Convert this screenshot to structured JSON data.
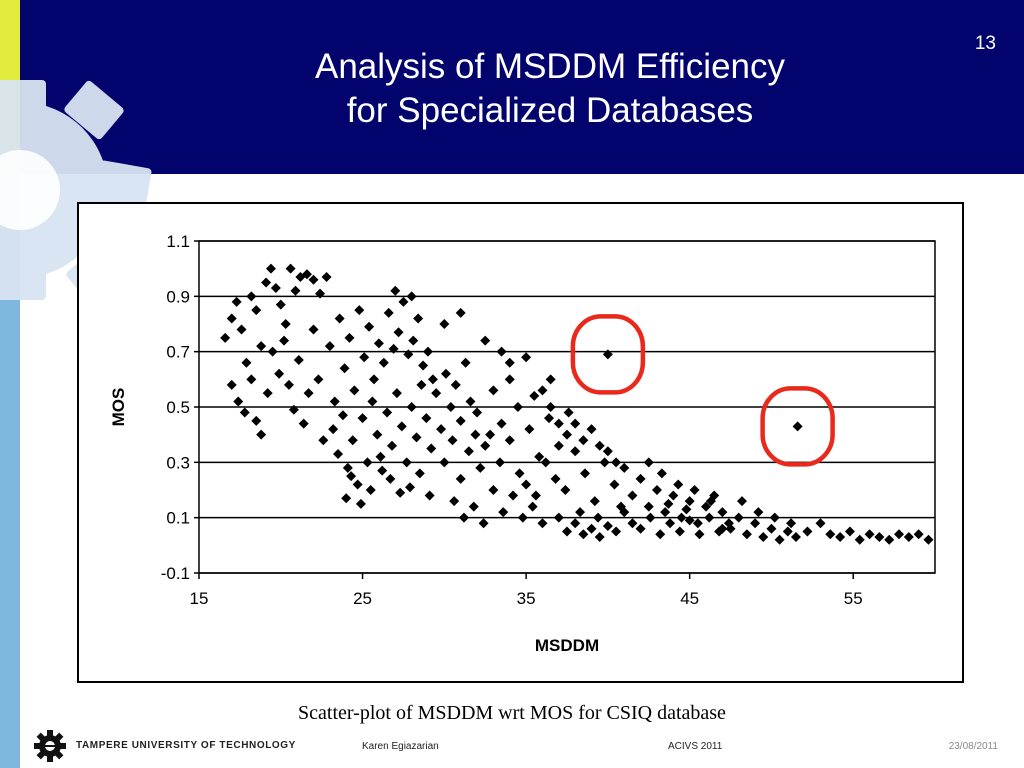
{
  "slide": {
    "title_line1": "Analysis of MSDDM Efficiency",
    "title_line2": "for Specialized Databases",
    "page_number": "13",
    "caption": "Scatter-plot of MSDDM wrt MOS for CSIQ database"
  },
  "footer": {
    "university": "TAMPERE UNIVERSITY OF TECHNOLOGY",
    "author": "Karen Egiazarian",
    "conference": "ACIVS 2011",
    "date": "23/08/2011"
  },
  "colors": {
    "header_bg": "#03036e",
    "highlight_circle": "#e8291c",
    "marker": "#000000"
  },
  "chart_data": {
    "type": "scatter",
    "xlabel": "MSDDM",
    "ylabel": "MOS",
    "xlim": [
      15,
      60
    ],
    "ylim": [
      -0.1,
      1.1
    ],
    "xticks": [
      "15",
      "25",
      "35",
      "45",
      "55"
    ],
    "yticks": [
      "1.1",
      "0.9",
      "0.7",
      "0.5",
      "0.3",
      "0.1",
      "-0.1"
    ],
    "grid": "horizontal",
    "marker": "diamond",
    "highlighted_points": [
      {
        "x": 40.0,
        "y": 0.69
      },
      {
        "x": 51.6,
        "y": 0.43
      }
    ],
    "points": [
      [
        16.6,
        0.75
      ],
      [
        17.0,
        0.82
      ],
      [
        17.3,
        0.88
      ],
      [
        17.6,
        0.78
      ],
      [
        17.9,
        0.66
      ],
      [
        18.2,
        0.9
      ],
      [
        18.5,
        0.85
      ],
      [
        18.8,
        0.72
      ],
      [
        19.1,
        0.95
      ],
      [
        19.4,
        1.0
      ],
      [
        19.7,
        0.93
      ],
      [
        20.0,
        0.87
      ],
      [
        20.3,
        0.8
      ],
      [
        20.6,
        1.0
      ],
      [
        20.9,
        0.92
      ],
      [
        21.2,
        0.97
      ],
      [
        21.6,
        0.98
      ],
      [
        22.0,
        0.96
      ],
      [
        22.4,
        0.91
      ],
      [
        22.8,
        0.97
      ],
      [
        17.0,
        0.58
      ],
      [
        17.4,
        0.52
      ],
      [
        17.8,
        0.48
      ],
      [
        18.2,
        0.6
      ],
      [
        18.5,
        0.45
      ],
      [
        18.8,
        0.4
      ],
      [
        19.2,
        0.55
      ],
      [
        19.5,
        0.7
      ],
      [
        19.9,
        0.62
      ],
      [
        20.2,
        0.74
      ],
      [
        20.5,
        0.58
      ],
      [
        20.8,
        0.49
      ],
      [
        21.1,
        0.67
      ],
      [
        21.4,
        0.44
      ],
      [
        21.7,
        0.55
      ],
      [
        22.0,
        0.78
      ],
      [
        22.3,
        0.6
      ],
      [
        22.6,
        0.38
      ],
      [
        23.0,
        0.72
      ],
      [
        23.3,
        0.52
      ],
      [
        23.6,
        0.82
      ],
      [
        23.9,
        0.64
      ],
      [
        24.2,
        0.75
      ],
      [
        24.5,
        0.56
      ],
      [
        24.8,
        0.85
      ],
      [
        25.1,
        0.68
      ],
      [
        25.4,
        0.79
      ],
      [
        25.7,
        0.6
      ],
      [
        26.0,
        0.73
      ],
      [
        26.3,
        0.66
      ],
      [
        26.6,
        0.84
      ],
      [
        26.9,
        0.71
      ],
      [
        27.2,
        0.77
      ],
      [
        27.5,
        0.88
      ],
      [
        27.8,
        0.69
      ],
      [
        28.1,
        0.74
      ],
      [
        28.4,
        0.82
      ],
      [
        28.7,
        0.65
      ],
      [
        29.0,
        0.7
      ],
      [
        29.3,
        0.6
      ],
      [
        23.2,
        0.42
      ],
      [
        23.5,
        0.33
      ],
      [
        23.8,
        0.47
      ],
      [
        24.1,
        0.28
      ],
      [
        24.4,
        0.38
      ],
      [
        24.7,
        0.22
      ],
      [
        25.0,
        0.46
      ],
      [
        25.3,
        0.3
      ],
      [
        25.6,
        0.52
      ],
      [
        25.9,
        0.4
      ],
      [
        26.2,
        0.27
      ],
      [
        26.5,
        0.48
      ],
      [
        26.8,
        0.36
      ],
      [
        27.1,
        0.55
      ],
      [
        27.4,
        0.43
      ],
      [
        27.7,
        0.3
      ],
      [
        28.0,
        0.5
      ],
      [
        28.3,
        0.39
      ],
      [
        28.6,
        0.58
      ],
      [
        28.9,
        0.46
      ],
      [
        29.2,
        0.35
      ],
      [
        29.5,
        0.55
      ],
      [
        29.8,
        0.42
      ],
      [
        30.1,
        0.62
      ],
      [
        30.4,
        0.5
      ],
      [
        30.7,
        0.58
      ],
      [
        31.0,
        0.45
      ],
      [
        31.3,
        0.66
      ],
      [
        31.6,
        0.52
      ],
      [
        31.9,
        0.4
      ],
      [
        24.0,
        0.17
      ],
      [
        24.3,
        0.25
      ],
      [
        24.9,
        0.15
      ],
      [
        25.5,
        0.2
      ],
      [
        26.1,
        0.32
      ],
      [
        26.7,
        0.24
      ],
      [
        27.3,
        0.19
      ],
      [
        27.9,
        0.21
      ],
      [
        28.5,
        0.26
      ],
      [
        29.1,
        0.18
      ],
      [
        30.0,
        0.3
      ],
      [
        30.5,
        0.38
      ],
      [
        31.0,
        0.24
      ],
      [
        31.5,
        0.34
      ],
      [
        32.0,
        0.48
      ],
      [
        32.5,
        0.36
      ],
      [
        33.0,
        0.56
      ],
      [
        33.5,
        0.44
      ],
      [
        34.0,
        0.6
      ],
      [
        34.5,
        0.5
      ],
      [
        30.6,
        0.16
      ],
      [
        31.2,
        0.1
      ],
      [
        31.8,
        0.14
      ],
      [
        32.4,
        0.08
      ],
      [
        33.0,
        0.2
      ],
      [
        33.6,
        0.12
      ],
      [
        34.2,
        0.18
      ],
      [
        34.8,
        0.1
      ],
      [
        35.4,
        0.14
      ],
      [
        36.0,
        0.08
      ],
      [
        32.2,
        0.28
      ],
      [
        32.8,
        0.4
      ],
      [
        33.4,
        0.3
      ],
      [
        34.0,
        0.38
      ],
      [
        34.6,
        0.26
      ],
      [
        35.2,
        0.42
      ],
      [
        35.8,
        0.32
      ],
      [
        36.4,
        0.46
      ],
      [
        37.0,
        0.36
      ],
      [
        37.6,
        0.48
      ],
      [
        35.0,
        0.22
      ],
      [
        35.6,
        0.18
      ],
      [
        36.2,
        0.3
      ],
      [
        36.8,
        0.24
      ],
      [
        37.4,
        0.2
      ],
      [
        38.0,
        0.34
      ],
      [
        38.6,
        0.26
      ],
      [
        39.2,
        0.16
      ],
      [
        39.8,
        0.3
      ],
      [
        40.4,
        0.22
      ],
      [
        37.0,
        0.1
      ],
      [
        37.5,
        0.05
      ],
      [
        38.0,
        0.08
      ],
      [
        38.5,
        0.04
      ],
      [
        39.0,
        0.06
      ],
      [
        39.5,
        0.03
      ],
      [
        40.0,
        0.07
      ],
      [
        40.5,
        0.05
      ],
      [
        41.0,
        0.12
      ],
      [
        41.5,
        0.08
      ],
      [
        41.0,
        0.28
      ],
      [
        41.5,
        0.18
      ],
      [
        42.0,
        0.24
      ],
      [
        42.5,
        0.14
      ],
      [
        43.0,
        0.2
      ],
      [
        43.5,
        0.12
      ],
      [
        44.0,
        0.18
      ],
      [
        44.5,
        0.1
      ],
      [
        45.0,
        0.16
      ],
      [
        45.5,
        0.08
      ],
      [
        42.0,
        0.06
      ],
      [
        42.6,
        0.1
      ],
      [
        43.2,
        0.04
      ],
      [
        43.8,
        0.08
      ],
      [
        44.4,
        0.05
      ],
      [
        45.0,
        0.09
      ],
      [
        45.6,
        0.04
      ],
      [
        46.2,
        0.1
      ],
      [
        46.8,
        0.05
      ],
      [
        47.4,
        0.08
      ],
      [
        47.0,
        0.12
      ],
      [
        47.5,
        0.06
      ],
      [
        48.0,
        0.1
      ],
      [
        48.5,
        0.04
      ],
      [
        49.0,
        0.08
      ],
      [
        49.5,
        0.03
      ],
      [
        50.0,
        0.06
      ],
      [
        50.5,
        0.02
      ],
      [
        51.0,
        0.05
      ],
      [
        51.5,
        0.03
      ],
      [
        46.0,
        0.14
      ],
      [
        46.5,
        0.18
      ],
      [
        47.0,
        0.06
      ],
      [
        48.2,
        0.16
      ],
      [
        49.2,
        0.12
      ],
      [
        50.2,
        0.1
      ],
      [
        51.2,
        0.08
      ],
      [
        52.2,
        0.05
      ],
      [
        53.0,
        0.08
      ],
      [
        53.6,
        0.04
      ],
      [
        54.2,
        0.03
      ],
      [
        54.8,
        0.05
      ],
      [
        55.4,
        0.02
      ],
      [
        56.0,
        0.04
      ],
      [
        56.6,
        0.03
      ],
      [
        57.2,
        0.02
      ],
      [
        57.8,
        0.04
      ],
      [
        58.4,
        0.03
      ],
      [
        59.0,
        0.04
      ],
      [
        59.6,
        0.02
      ],
      [
        36.0,
        0.56
      ],
      [
        36.5,
        0.5
      ],
      [
        37.0,
        0.44
      ],
      [
        37.5,
        0.4
      ],
      [
        38.0,
        0.44
      ],
      [
        38.5,
        0.38
      ],
      [
        39.0,
        0.42
      ],
      [
        39.5,
        0.36
      ],
      [
        40.0,
        0.34
      ],
      [
        40.5,
        0.3
      ],
      [
        33.5,
        0.7
      ],
      [
        32.5,
        0.74
      ],
      [
        31.0,
        0.84
      ],
      [
        30.0,
        0.8
      ],
      [
        28.0,
        0.9
      ],
      [
        27.0,
        0.92
      ],
      [
        35.0,
        0.68
      ],
      [
        34.0,
        0.66
      ],
      [
        36.5,
        0.6
      ],
      [
        35.5,
        0.54
      ],
      [
        42.5,
        0.3
      ],
      [
        43.3,
        0.26
      ],
      [
        44.3,
        0.22
      ],
      [
        45.3,
        0.2
      ],
      [
        46.3,
        0.16
      ],
      [
        44.8,
        0.13
      ],
      [
        43.7,
        0.15
      ],
      [
        38.3,
        0.12
      ],
      [
        39.4,
        0.1
      ],
      [
        40.8,
        0.14
      ]
    ]
  }
}
